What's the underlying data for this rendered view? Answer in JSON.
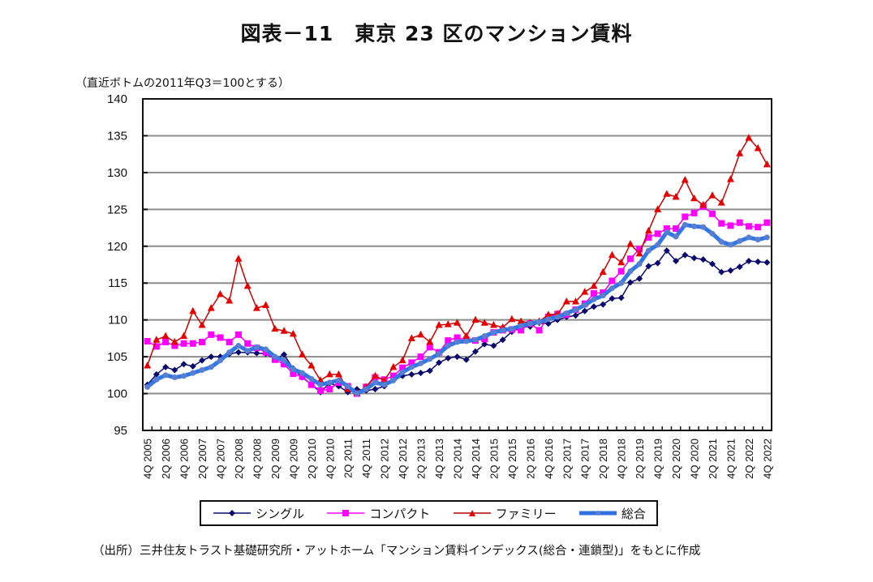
{
  "chart_data": {
    "type": "line",
    "title": "図表－11　東京 23 区のマンション賃料",
    "ylabel_note": "（直近ボトムの2011年Q3＝100とする）",
    "xlabel": "",
    "ylabel": "",
    "ylim": [
      95,
      140
    ],
    "yticks": [
      95,
      100,
      105,
      110,
      115,
      120,
      125,
      130,
      135,
      140
    ],
    "grid": true,
    "legend_position": "bottom",
    "x_tick_labels": [
      "4Q 2005",
      "2Q 2006",
      "4Q 2006",
      "2Q 2007",
      "4Q 2007",
      "2Q 2008",
      "4Q 2008",
      "2Q 2009",
      "4Q 2009",
      "2Q 2010",
      "4Q 2010",
      "2Q 2011",
      "4Q 2011",
      "2Q 2012",
      "4Q 2012",
      "2Q 2013",
      "4Q 2013",
      "2Q 2014",
      "4Q 2014",
      "2Q 2015",
      "4Q 2015",
      "2Q 2016",
      "4Q 2016",
      "2Q 2017",
      "4Q 2017",
      "2Q 2018",
      "4Q 2018",
      "2Q 2019",
      "4Q 2019",
      "2Q 2020",
      "4Q 2020",
      "2Q 2021",
      "4Q 2021",
      "2Q 2022",
      "4Q 2022"
    ],
    "x_tick_every": 2,
    "n_points": 69,
    "series": [
      {
        "name": "シングル",
        "color": "#0a0a6e",
        "marker": "diamond",
        "values": [
          101.2,
          102.6,
          103.6,
          103.2,
          104.0,
          103.7,
          104.5,
          105.0,
          105.0,
          105.4,
          105.6,
          105.6,
          105.5,
          105.4,
          104.7,
          105.3,
          103.4,
          102.2,
          101.2,
          100.2,
          101.4,
          101.0,
          100.2,
          100.6,
          100.4,
          100.6,
          101.0,
          101.8,
          102.4,
          102.6,
          102.8,
          103.1,
          104.2,
          104.8,
          105.0,
          104.6,
          105.7,
          106.7,
          106.5,
          107.3,
          108.4,
          109.0,
          109.1,
          109.6,
          109.5,
          110.0,
          110.4,
          110.6,
          111.2,
          111.8,
          112.1,
          112.9,
          113.0,
          115.1,
          115.6,
          117.3,
          117.7,
          119.4,
          118.0,
          118.8,
          118.4,
          118.2,
          117.6,
          116.5,
          116.7,
          117.2,
          118.0,
          117.9,
          117.8
        ]
      },
      {
        "name": "コンパクト",
        "color": "#ff00ff",
        "marker": "square",
        "values": [
          107.1,
          106.4,
          107.0,
          106.5,
          106.8,
          106.8,
          107.0,
          108.0,
          107.6,
          107.0,
          108.0,
          106.8,
          106.2,
          105.6,
          104.6,
          104.0,
          102.7,
          102.3,
          101.2,
          100.4,
          100.6,
          101.5,
          101.0,
          100.0,
          100.9,
          102.2,
          101.9,
          102.4,
          103.5,
          104.2,
          105.0,
          106.3,
          105.6,
          107.2,
          107.6,
          107.3,
          107.2,
          107.4,
          108.3,
          108.6,
          108.7,
          108.6,
          109.5,
          108.6,
          110.4,
          110.8,
          110.7,
          111.4,
          112.2,
          113.6,
          113.7,
          115.3,
          116.6,
          118.3,
          119.6,
          121.2,
          121.7,
          122.4,
          122.4,
          124.0,
          124.5,
          125.4,
          124.4,
          123.1,
          122.8,
          123.2,
          122.7,
          122.6,
          123.2
        ]
      },
      {
        "name": "ファミリー",
        "color": "#e60000",
        "marker": "triangle",
        "values": [
          103.8,
          107.3,
          107.8,
          107.0,
          107.8,
          111.2,
          109.3,
          111.6,
          113.5,
          112.6,
          118.3,
          114.6,
          111.6,
          112.0,
          108.8,
          108.5,
          108.1,
          105.3,
          103.8,
          101.8,
          102.6,
          102.6,
          100.6,
          100.1,
          100.9,
          102.4,
          101.8,
          103.6,
          104.5,
          107.5,
          108.0,
          107.0,
          109.3,
          109.4,
          109.6,
          107.8,
          110.0,
          109.6,
          109.3,
          109.0,
          110.1,
          109.8,
          109.6,
          109.8,
          110.7,
          110.8,
          112.5,
          112.5,
          113.8,
          114.6,
          116.5,
          118.8,
          117.8,
          120.3,
          119.0,
          122.1,
          125.0,
          127.1,
          126.7,
          129.0,
          126.5,
          125.6,
          126.9,
          125.9,
          129.1,
          132.6,
          134.7,
          133.3,
          131.1
        ]
      },
      {
        "name": "総合",
        "color": "#2f6fe0",
        "marker": "circle",
        "values": [
          100.9,
          101.9,
          102.5,
          102.2,
          102.4,
          102.8,
          103.2,
          103.6,
          104.5,
          105.6,
          106.5,
          105.8,
          106.3,
          106.0,
          105.0,
          104.5,
          103.3,
          102.8,
          102.0,
          101.2,
          101.5,
          101.8,
          101.0,
          100.0,
          100.6,
          101.5,
          101.2,
          101.8,
          102.9,
          103.6,
          104.1,
          104.7,
          105.4,
          106.5,
          107.0,
          107.1,
          107.3,
          107.8,
          108.3,
          108.6,
          108.8,
          109.2,
          109.5,
          109.7,
          110.1,
          110.4,
          110.9,
          111.4,
          112.0,
          112.8,
          113.3,
          114.3,
          115.0,
          116.6,
          117.6,
          119.4,
          120.2,
          121.9,
          121.3,
          122.9,
          122.7,
          122.6,
          121.7,
          120.6,
          120.2,
          120.7,
          121.2,
          120.9,
          121.2
        ]
      }
    ]
  },
  "header": {
    "title": "図表－11　東京 23 区のマンション賃料"
  },
  "note": "（直近ボトムの2011年Q3＝100とする）",
  "legend": {
    "items": [
      "シングル",
      "コンパクト",
      "ファミリー",
      "総合"
    ]
  },
  "footer": {
    "source": "（出所）三井住友トラスト基礎研究所・アットホーム「マンション賃料インデックス(総合・連鎖型)」をもとに作成"
  }
}
